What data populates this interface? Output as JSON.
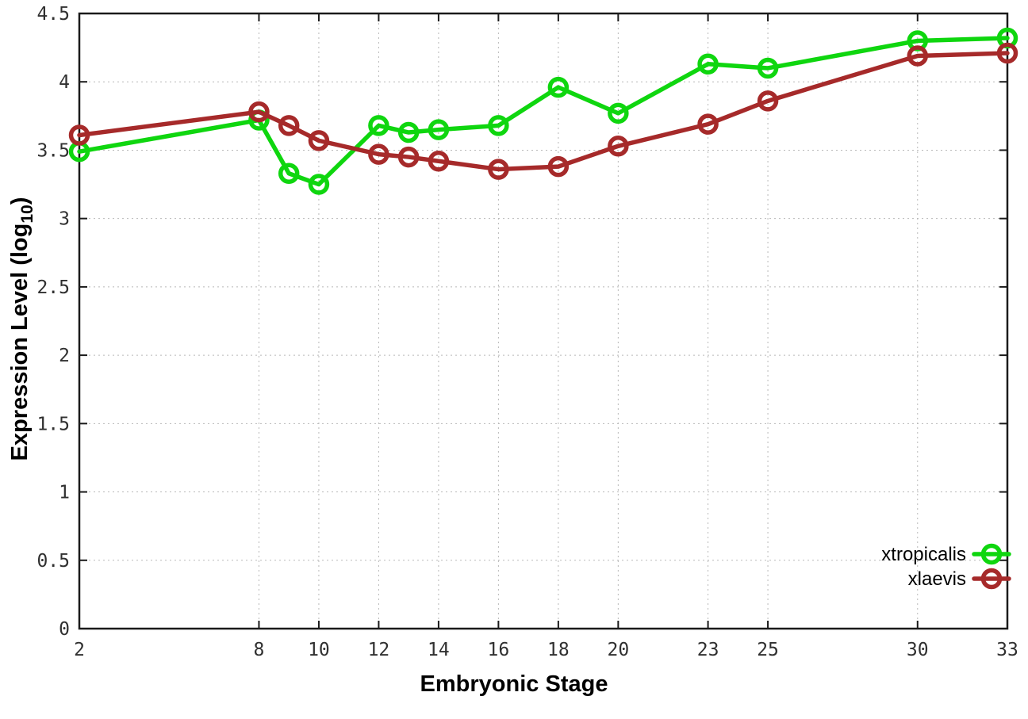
{
  "chart_data": {
    "type": "line",
    "title": "",
    "xlabel": "Embryonic Stage",
    "ylabel_parts": {
      "pre": "Expression Level (log",
      "sub": "10",
      "post": ")"
    },
    "xlim": [
      2,
      33
    ],
    "ylim": [
      0,
      4.5
    ],
    "grid": true,
    "legend_position": "inside-bottom-right",
    "x": [
      2,
      8,
      9,
      10,
      12,
      13,
      14,
      16,
      18,
      20,
      23,
      25,
      30,
      33
    ],
    "xticks": [
      2,
      8,
      10,
      12,
      14,
      16,
      18,
      20,
      23,
      25,
      30,
      33
    ],
    "xtick_labels": [
      "2",
      "8",
      "10",
      "12",
      "14",
      "16",
      "18",
      "20",
      "23",
      "25",
      "30",
      "33"
    ],
    "yticks": [
      0,
      0.5,
      1,
      1.5,
      2,
      2.5,
      3,
      3.5,
      4,
      4.5
    ],
    "ytick_labels": [
      "0",
      "0.5",
      "1",
      "1.5",
      "2",
      "2.5",
      "3",
      "3.5",
      "4",
      "4.5"
    ],
    "marker": "open-circle",
    "series": [
      {
        "name": "xtropicalis",
        "color": "#0fd60f",
        "values": [
          3.49,
          3.72,
          3.33,
          3.25,
          3.68,
          3.63,
          3.65,
          3.68,
          3.96,
          3.77,
          4.13,
          4.1,
          4.3,
          4.32
        ]
      },
      {
        "name": "xlaevis",
        "color": "#a62a2a",
        "values": [
          3.61,
          3.78,
          3.68,
          3.57,
          3.47,
          3.45,
          3.42,
          3.36,
          3.38,
          3.53,
          3.69,
          3.86,
          4.19,
          4.21
        ]
      }
    ],
    "style_colors": {
      "grid": "#b8b8b8",
      "border": "#1a1a1a",
      "tick_label": "#303030"
    }
  }
}
